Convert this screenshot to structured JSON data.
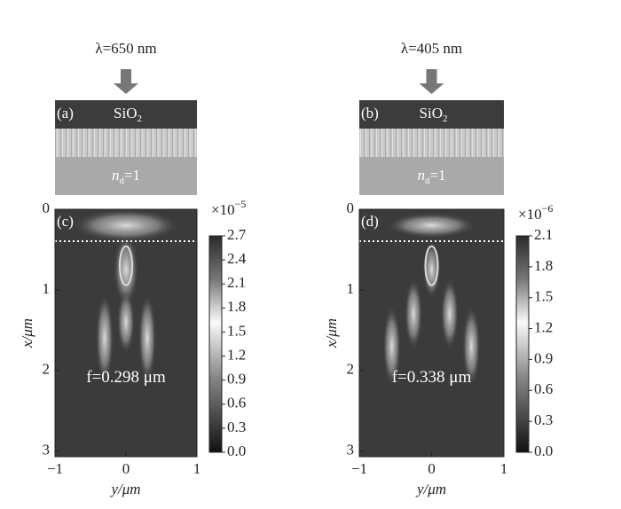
{
  "chart_data": [
    {
      "type": "heatmap",
      "wavelength_label": "λ=650 nm",
      "structure_tag": "(a)",
      "cover_layer": {
        "text": "SiO",
        "sub": "2"
      },
      "substrate": {
        "text": "n",
        "sub": "d",
        "rest": "=1"
      },
      "field_tag": "(c)",
      "annotation": "f=0.298 μm",
      "xlabel": "y/μm",
      "ylabel": "x/μm",
      "xlim": [
        -1,
        1
      ],
      "xticks": [
        {
          "value": -1,
          "label": "−1"
        },
        0,
        1
      ],
      "ylim": [
        0,
        3.07
      ],
      "yticks": [
        0,
        1,
        2,
        3
      ],
      "colorbar": {
        "lim": [
          0,
          2.7
        ],
        "ticks": [
          {
            "value": 0,
            "label": "0.0"
          },
          0.3,
          0.6,
          0.9,
          1.2,
          1.5,
          1.8,
          2.1,
          2.4,
          2.7
        ],
        "scale": "×10",
        "scale_exp": "−5"
      }
    },
    {
      "type": "heatmap",
      "wavelength_label": "λ=405 nm",
      "structure_tag": "(b)",
      "cover_layer": {
        "text": "SiO",
        "sub": "2"
      },
      "substrate": {
        "text": "n",
        "sub": "d",
        "rest": "=1"
      },
      "field_tag": "(d)",
      "annotation": "f=0.338 μm",
      "xlabel": "y/μm",
      "ylabel": "x/μm",
      "xlim": [
        -1,
        1
      ],
      "xticks": [
        {
          "value": -1,
          "label": "−1"
        },
        0,
        1
      ],
      "ylim": [
        0,
        3.07
      ],
      "yticks": [
        0,
        1,
        2,
        3
      ],
      "colorbar": {
        "lim": [
          0,
          2.1
        ],
        "ticks": [
          {
            "value": 0,
            "label": "0.0"
          },
          0.3,
          0.6,
          0.9,
          1.2,
          1.5,
          1.8,
          2.1
        ],
        "scale": "×10",
        "scale_exp": "−6"
      }
    }
  ]
}
